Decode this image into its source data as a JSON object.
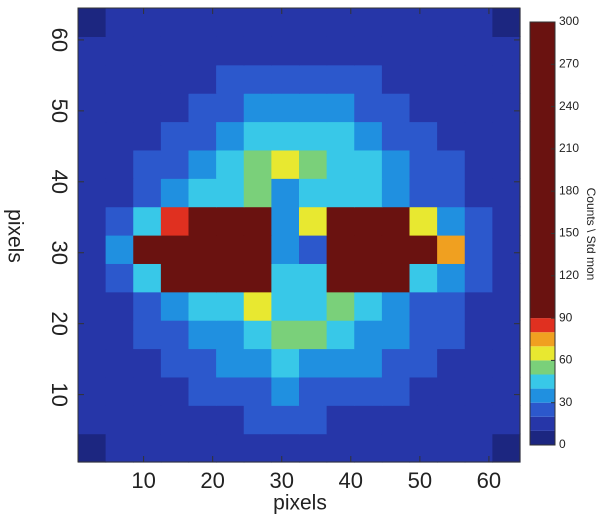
{
  "chart_data": {
    "type": "contourf",
    "xlabel": "pixels",
    "ylabel": "pixels",
    "colorbar_label": "Counts \\ Std mon",
    "xlim": [
      0.5,
      64.5
    ],
    "ylim": [
      0.5,
      64.5
    ],
    "xticks": [
      10,
      20,
      30,
      40,
      50,
      60
    ],
    "yticks": [
      10,
      20,
      30,
      40,
      50,
      60
    ],
    "x": [
      2.5,
      6.5,
      10.5,
      14.5,
      18.5,
      22.5,
      26.5,
      30.5,
      34.5,
      38.5,
      42.5,
      46.5,
      50.5,
      54.5,
      58.5,
      62.5
    ],
    "y": [
      2.5,
      6.5,
      10.5,
      14.5,
      18.5,
      22.5,
      26.5,
      30.5,
      34.5,
      38.5,
      42.5,
      46.5,
      50.5,
      54.5,
      58.5,
      62.5
    ],
    "z": [
      [
        8,
        10,
        12,
        12,
        12,
        12,
        12,
        12,
        12,
        12,
        12,
        12,
        12,
        12,
        10,
        8
      ],
      [
        10,
        12,
        14,
        15,
        16,
        18,
        20,
        20,
        20,
        18,
        17,
        15,
        14,
        13,
        12,
        10
      ],
      [
        12,
        14,
        16,
        18,
        22,
        25,
        28,
        30,
        28,
        26,
        24,
        20,
        18,
        16,
        14,
        12
      ],
      [
        12,
        15,
        18,
        22,
        27,
        32,
        36,
        40,
        38,
        35,
        30,
        25,
        20,
        17,
        15,
        12
      ],
      [
        13,
        16,
        22,
        28,
        32,
        38,
        45,
        50,
        55,
        45,
        38,
        30,
        24,
        20,
        16,
        13
      ],
      [
        14,
        18,
        25,
        32,
        40,
        45,
        60,
        40,
        45,
        50,
        42,
        35,
        28,
        22,
        18,
        14
      ],
      [
        15,
        22,
        40,
        90,
        200,
        200,
        120,
        40,
        40,
        180,
        200,
        100,
        45,
        30,
        20,
        15
      ],
      [
        18,
        30,
        90,
        250,
        300,
        300,
        280,
        30,
        25,
        300,
        300,
        280,
        150,
        70,
        28,
        18
      ],
      [
        15,
        22,
        40,
        80,
        150,
        200,
        180,
        30,
        60,
        200,
        190,
        120,
        60,
        35,
        22,
        15
      ],
      [
        14,
        18,
        25,
        32,
        40,
        45,
        50,
        35,
        40,
        48,
        42,
        35,
        28,
        22,
        18,
        14
      ],
      [
        13,
        16,
        20,
        25,
        32,
        40,
        55,
        65,
        55,
        48,
        40,
        30,
        24,
        20,
        16,
        13
      ],
      [
        12,
        15,
        17,
        20,
        25,
        32,
        40,
        45,
        45,
        40,
        32,
        25,
        20,
        17,
        15,
        12
      ],
      [
        12,
        14,
        16,
        18,
        20,
        25,
        30,
        35,
        35,
        30,
        25,
        20,
        18,
        16,
        14,
        12
      ],
      [
        12,
        14,
        15,
        16,
        18,
        20,
        22,
        24,
        24,
        22,
        20,
        18,
        16,
        15,
        14,
        12
      ],
      [
        10,
        12,
        14,
        14,
        15,
        16,
        17,
        18,
        18,
        17,
        16,
        15,
        14,
        14,
        12,
        10
      ],
      [
        8,
        10,
        12,
        12,
        12,
        12,
        12,
        12,
        12,
        12,
        12,
        12,
        12,
        12,
        10,
        8
      ]
    ],
    "levels": [
      0,
      10,
      20,
      30,
      40,
      50,
      60,
      70,
      80,
      90,
      300
    ],
    "colors": [
      "#1c2680",
      "#2636a8",
      "#2c58cc",
      "#2090e0",
      "#38c8e8",
      "#7ad07a",
      "#e8e830",
      "#f0a020",
      "#e03020",
      "#6a1210"
    ],
    "clim": [
      0,
      300
    ],
    "cticks": [
      0,
      30,
      60,
      90,
      120,
      150,
      180,
      210,
      240,
      270,
      300
    ]
  }
}
